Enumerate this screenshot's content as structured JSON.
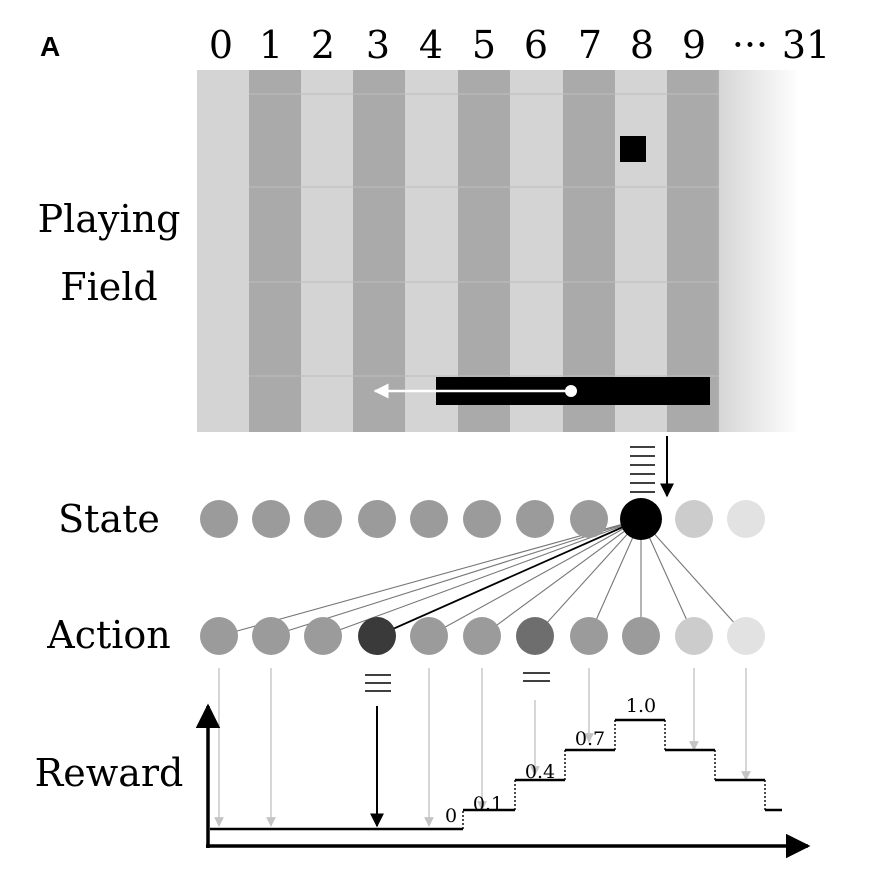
{
  "panel_label": "A",
  "column_labels": [
    "0",
    "1",
    "2",
    "3",
    "4",
    "5",
    "6",
    "7",
    "8",
    "9",
    "···",
    "31"
  ],
  "row_labels": {
    "playing_field_line1": "Playing",
    "playing_field_line2": "Field",
    "state": "State",
    "action": "Action",
    "reward": "Reward"
  },
  "state_nodes": {
    "count": 11,
    "active_index": 8
  },
  "action_nodes": {
    "count": 11,
    "selected_index": 3,
    "secondary_index": 6
  },
  "reward_levels": {
    "labels": [
      "0",
      "0.1",
      "0.4",
      "0.7",
      "1.0"
    ],
    "values": [
      0,
      0.1,
      0.4,
      0.7,
      1.0
    ]
  },
  "colors": {
    "field_light": "#d4d4d4",
    "field_dark": "#aaaaaa",
    "node_gray": "#9b9b9b",
    "node_light": "#cccccc",
    "node_lighter": "#e2e2e2",
    "active": "#000000",
    "selected": "#3a3a3a",
    "secondary": "#6e6e6e"
  }
}
